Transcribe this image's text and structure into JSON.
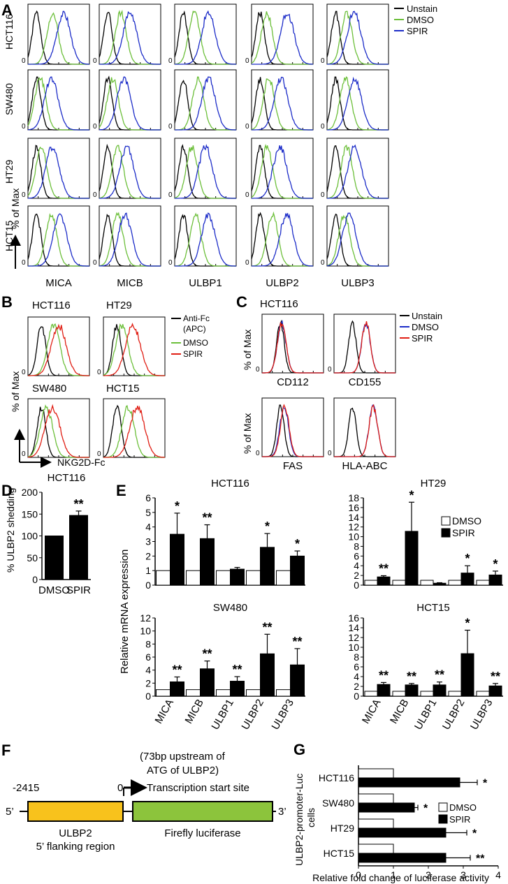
{
  "colors": {
    "unstain": "#000000",
    "dmso": "#6cbf3a",
    "spir_blue": "#1c2cc8",
    "spir_red": "#e01e14",
    "apc": "#000000",
    "promoter": "#f8c21c",
    "luciferase": "#8cc43c"
  },
  "panelA": {
    "letter": "A",
    "rows": [
      "HCT116",
      "SW480",
      "HT29",
      "HCT15"
    ],
    "cols": [
      "MICA",
      "MICB",
      "ULBP1",
      "ULBP2",
      "ULBP3"
    ],
    "ylabel": "% of Max",
    "zero": "0",
    "legend": [
      "Unstain",
      "DMSO",
      "SPIR"
    ],
    "shifts": [
      [
        [
          0.4,
          0.58
        ],
        [
          0.35,
          0.5
        ],
        [
          0.32,
          0.55
        ],
        [
          0.25,
          0.58
        ],
        [
          0.32,
          0.44
        ]
      ],
      [
        [
          0.2,
          0.38
        ],
        [
          0.22,
          0.4
        ],
        [
          0.38,
          0.55
        ],
        [
          0.28,
          0.48
        ],
        [
          0.3,
          0.45
        ]
      ],
      [
        [
          0.22,
          0.4
        ],
        [
          0.3,
          0.45
        ],
        [
          0.28,
          0.5
        ],
        [
          0.25,
          0.46
        ],
        [
          0.32,
          0.45
        ]
      ],
      [
        [
          0.38,
          0.52
        ],
        [
          0.3,
          0.42
        ],
        [
          0.34,
          0.55
        ],
        [
          0.34,
          0.57
        ],
        [
          0.28,
          0.36
        ]
      ]
    ]
  },
  "panelB": {
    "letter": "B",
    "cells": [
      "HCT116",
      "HT29",
      "SW480",
      "HCT15"
    ],
    "xlabel": "NKG2D-Fc",
    "ylabel": "% of Max",
    "zero": "0",
    "legend": [
      "Anti-Fc",
      "(APC)",
      "DMSO",
      "SPIR"
    ],
    "shifts": [
      [
        0.42,
        0.5
      ],
      [
        0.3,
        0.48
      ],
      [
        0.3,
        0.4
      ],
      [
        0.4,
        0.55
      ]
    ]
  },
  "panelC": {
    "letter": "C",
    "title": "HCT116",
    "markers": [
      "CD112",
      "CD155",
      "FAS",
      "HLA-ABC"
    ],
    "ylabel": "% of Max",
    "zero": "0",
    "legend": [
      "Unstain",
      "DMSO",
      "SPIR"
    ],
    "shifts": [
      [
        0.32,
        0.32
      ],
      [
        0.52,
        0.52
      ],
      [
        0.36,
        0.37
      ],
      [
        0.64,
        0.64
      ]
    ]
  },
  "chart_data": [
    {
      "panel": "D",
      "type": "bar",
      "title": "HCT116",
      "categories": [
        "DMSO",
        "SPIR"
      ],
      "values": [
        100,
        147
      ],
      "errors": [
        0,
        10
      ],
      "ylabel": "% ULBP2 shedding",
      "ylim": [
        0,
        200
      ],
      "yticks": [
        "0",
        "50",
        "100",
        "150",
        "200"
      ],
      "annotations": [
        "",
        "**"
      ]
    },
    {
      "panel": "E",
      "type": "bar",
      "title": "HCT116",
      "categories": [
        "MICA",
        "MICB",
        "ULBP1",
        "ULBP2",
        "ULBP3"
      ],
      "ylim": [
        0,
        6
      ],
      "yticks": [
        "0",
        "1",
        "2",
        "3",
        "4",
        "5",
        "6"
      ],
      "series": [
        {
          "name": "DMSO",
          "values": [
            1,
            1,
            1,
            1,
            1
          ]
        },
        {
          "name": "SPIR",
          "values": [
            3.5,
            3.2,
            1.1,
            2.6,
            2.0
          ],
          "errors": [
            1.45,
            0.95,
            0.12,
            0.95,
            0.35
          ]
        }
      ],
      "annotations": [
        "*",
        "**",
        "",
        "*",
        "*"
      ]
    },
    {
      "panel": "E",
      "type": "bar",
      "title": "HT29",
      "categories": [
        "MICA",
        "MICB",
        "ULBP1",
        "ULBP2",
        "ULBP3"
      ],
      "ylim": [
        0,
        18
      ],
      "yticks": [
        "0",
        "2",
        "4",
        "6",
        "8",
        "10",
        "12",
        "14",
        "16",
        "18"
      ],
      "series": [
        {
          "name": "DMSO",
          "values": [
            1,
            1,
            1,
            1,
            1
          ]
        },
        {
          "name": "SPIR",
          "values": [
            1.7,
            11.1,
            0.4,
            2.5,
            2.1
          ],
          "errors": [
            0.25,
            6.0,
            0.1,
            1.5,
            0.8
          ]
        }
      ],
      "annotations": [
        "**",
        "*",
        "",
        "*",
        "*"
      ],
      "legend": [
        "DMSO",
        "SPIR"
      ]
    },
    {
      "panel": "E",
      "type": "bar",
      "title": "SW480",
      "categories": [
        "MICA",
        "MICB",
        "ULBP1",
        "ULBP2",
        "ULBP3"
      ],
      "ylim": [
        0,
        12
      ],
      "yticks": [
        "0",
        "2",
        "4",
        "6",
        "8",
        "10",
        "12"
      ],
      "series": [
        {
          "name": "DMSO",
          "values": [
            1,
            1,
            1,
            1,
            1
          ]
        },
        {
          "name": "SPIR",
          "values": [
            2.2,
            4.2,
            2.3,
            6.5,
            4.8
          ],
          "errors": [
            0.75,
            1.2,
            0.7,
            3.0,
            2.5
          ]
        }
      ],
      "annotations": [
        "**",
        "**",
        "**",
        "**",
        "**"
      ]
    },
    {
      "panel": "E",
      "type": "bar",
      "title": "HCT15",
      "categories": [
        "MICA",
        "MICB",
        "ULBP1",
        "ULBP2",
        "ULBP3"
      ],
      "ylim": [
        0,
        16
      ],
      "yticks": [
        "0",
        "2",
        "4",
        "6",
        "8",
        "10",
        "12",
        "14",
        "16"
      ],
      "series": [
        {
          "name": "DMSO",
          "values": [
            1,
            1,
            1,
            1,
            1
          ]
        },
        {
          "name": "SPIR",
          "values": [
            2.4,
            2.3,
            2.3,
            8.7,
            2.1
          ],
          "errors": [
            0.4,
            0.3,
            0.6,
            4.8,
            0.5
          ]
        }
      ],
      "annotations": [
        "**",
        "**",
        "**",
        "*",
        "**"
      ]
    },
    {
      "panel": "G",
      "type": "bar",
      "orientation": "horizontal",
      "categories": [
        "HCT116",
        "SW480",
        "HT29",
        "HCT15"
      ],
      "xlim": [
        0,
        4
      ],
      "xticks": [
        "0",
        "1",
        "2",
        "3",
        "4"
      ],
      "series": [
        {
          "name": "DMSO",
          "values": [
            1,
            1,
            1,
            1
          ]
        },
        {
          "name": "SPIR",
          "values": [
            2.9,
            1.6,
            2.5,
            2.5
          ],
          "errors": [
            0.5,
            0.1,
            0.6,
            0.7
          ]
        }
      ],
      "annotations": [
        "*",
        "*",
        "*",
        "**"
      ],
      "xlabel": "Relative fold change of luciferase activity",
      "ylabel": [
        "ULBP2-promoter-Luc",
        "cells"
      ],
      "legend": [
        "DMSO",
        "SPIR"
      ]
    }
  ],
  "panelE": {
    "letter": "E",
    "ylabel": "Relative mRNA expression"
  },
  "panelD": {
    "letter": "D"
  },
  "panelF": {
    "letter": "F",
    "upstream_note": [
      "(73bp upstream of",
      "ATG of ULBP2)"
    ],
    "pos_start": "-2415",
    "pos_zero": "0",
    "tss": "Transcription start site",
    "five": "5’",
    "three": "3’",
    "promoter_label": [
      "ULBP2",
      "5’ flanking region"
    ],
    "luciferase_label": "Firefly luciferase"
  },
  "panelG": {
    "letter": "G"
  }
}
